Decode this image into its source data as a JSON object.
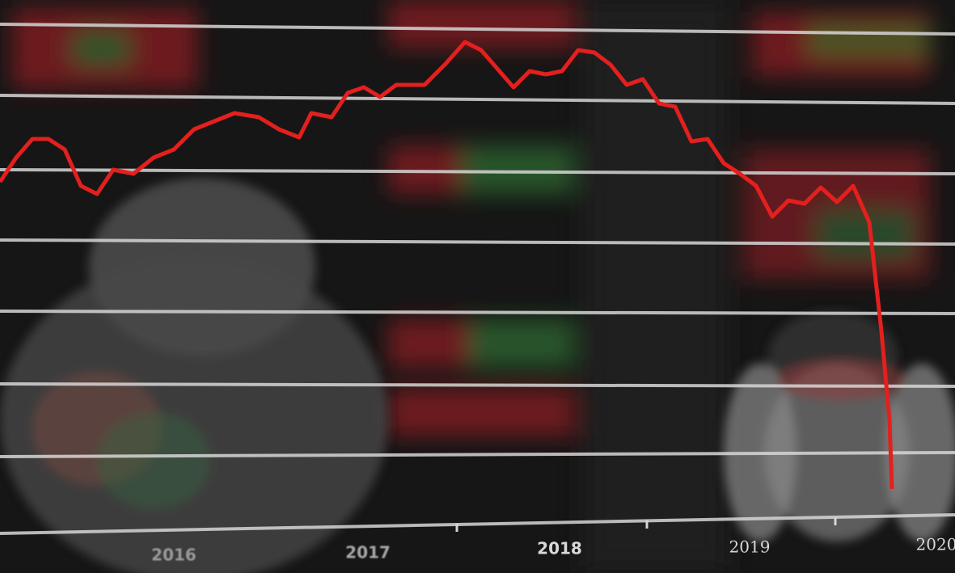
{
  "image": {
    "axis_labels": [
      "2016",
      "2017",
      "2018",
      "2019",
      "2020"
    ]
  }
}
